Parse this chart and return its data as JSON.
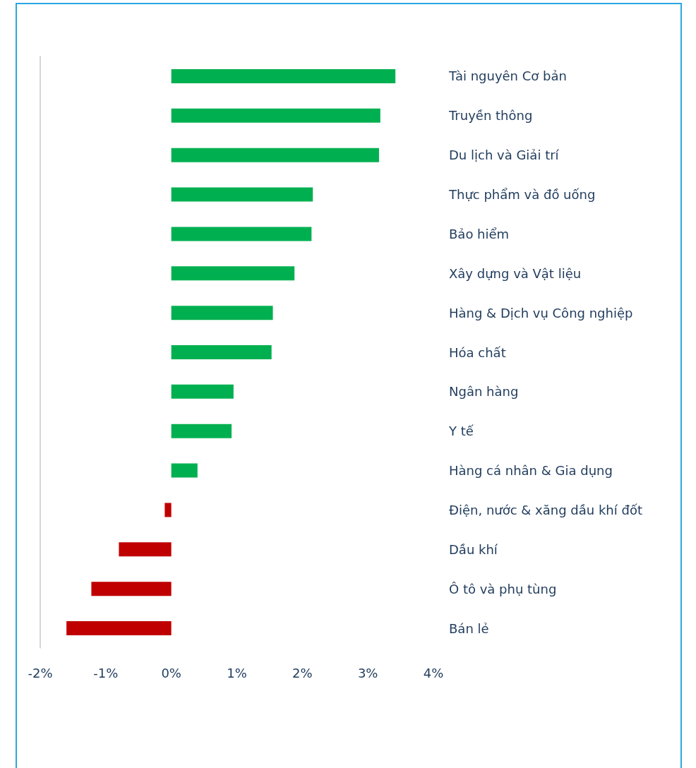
{
  "chart_data": {
    "type": "bar",
    "orientation": "horizontal",
    "categories": [
      "Tài nguyên Cơ bản",
      "Truyền thông",
      "Du lịch và Giải trí",
      "Thực phẩm và đồ uống",
      "Bảo hiểm",
      "Xây dựng và Vật liệu",
      "Hàng & Dịch vụ Công nghiệp",
      "Hóa chất",
      "Ngân hàng",
      "Y tế",
      "Hàng cá nhân & Gia dụng",
      "Điện, nước & xăng dầu khí đốt",
      "Dầu khí",
      "Ô tô và phụ tùng",
      "Bán lẻ"
    ],
    "values": [
      3.42,
      3.19,
      3.17,
      2.16,
      2.14,
      1.88,
      1.55,
      1.53,
      0.95,
      0.92,
      0.4,
      -0.1,
      -0.8,
      -1.22,
      -1.6
    ],
    "colors": [
      "#00b050",
      "#00b050",
      "#00b050",
      "#00b050",
      "#00b050",
      "#00b050",
      "#00b050",
      "#00b050",
      "#00b050",
      "#00b050",
      "#00b050",
      "#c00000",
      "#c00000",
      "#c00000",
      "#c00000"
    ],
    "xlim": [
      -2,
      4
    ],
    "xticks": [
      {
        "value": -2,
        "label": "-2%"
      },
      {
        "value": -1,
        "label": "-1%"
      },
      {
        "value": 0,
        "label": "0%"
      },
      {
        "value": 1,
        "label": "1%"
      },
      {
        "value": 2,
        "label": "2%"
      },
      {
        "value": 3,
        "label": "3%"
      },
      {
        "value": 4,
        "label": "4%"
      }
    ],
    "grid": false
  }
}
